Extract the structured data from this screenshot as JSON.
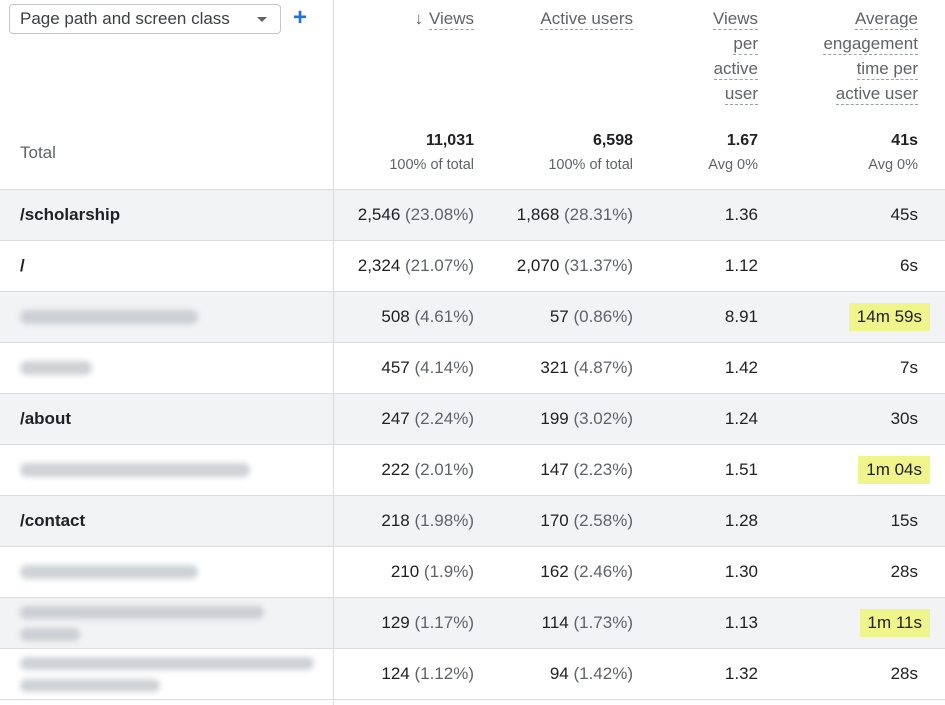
{
  "dimension_select": {
    "label": "Page path and screen class"
  },
  "columns": {
    "views": "Views",
    "active_users": "Active users",
    "views_per_active_user": [
      "Views",
      "per",
      "active",
      "user"
    ],
    "avg_engagement": [
      "Average",
      "engagement",
      "time per",
      "active user"
    ]
  },
  "total": {
    "label": "Total",
    "views": "11,031",
    "views_sub": "100% of total",
    "users": "6,598",
    "users_sub": "100% of total",
    "vpu": "1.67",
    "vpu_sub": "Avg 0%",
    "aet": "41s",
    "aet_sub": "Avg 0%"
  },
  "rows": [
    {
      "path": "/scholarship",
      "views": "2,546",
      "views_pct": "(23.08%)",
      "users": "1,868",
      "users_pct": "(28.31%)",
      "vpu": "1.36",
      "aet": "45s",
      "highlight": false,
      "blurred": false
    },
    {
      "path": "/",
      "views": "2,324",
      "views_pct": "(21.07%)",
      "users": "2,070",
      "users_pct": "(31.37%)",
      "vpu": "1.12",
      "aet": "6s",
      "highlight": false,
      "blurred": false
    },
    {
      "path": "",
      "views": "508",
      "views_pct": "(4.61%)",
      "users": "57",
      "users_pct": "(0.86%)",
      "vpu": "8.91",
      "aet": "14m 59s",
      "highlight": true,
      "blurred": true
    },
    {
      "path": "",
      "views": "457",
      "views_pct": "(4.14%)",
      "users": "321",
      "users_pct": "(4.87%)",
      "vpu": "1.42",
      "aet": "7s",
      "highlight": false,
      "blurred": true
    },
    {
      "path": "/about",
      "views": "247",
      "views_pct": "(2.24%)",
      "users": "199",
      "users_pct": "(3.02%)",
      "vpu": "1.24",
      "aet": "30s",
      "highlight": false,
      "blurred": false
    },
    {
      "path": "",
      "views": "222",
      "views_pct": "(2.01%)",
      "users": "147",
      "users_pct": "(2.23%)",
      "vpu": "1.51",
      "aet": "1m 04s",
      "highlight": true,
      "blurred": true
    },
    {
      "path": "/contact",
      "views": "218",
      "views_pct": "(1.98%)",
      "users": "170",
      "users_pct": "(2.58%)",
      "vpu": "1.28",
      "aet": "15s",
      "highlight": false,
      "blurred": false
    },
    {
      "path": "",
      "views": "210",
      "views_pct": "(1.9%)",
      "users": "162",
      "users_pct": "(2.46%)",
      "vpu": "1.30",
      "aet": "28s",
      "highlight": false,
      "blurred": true
    },
    {
      "path": "",
      "views": "129",
      "views_pct": "(1.17%)",
      "users": "114",
      "users_pct": "(1.73%)",
      "vpu": "1.13",
      "aet": "1m 11s",
      "highlight": true,
      "blurred": true
    },
    {
      "path": "",
      "views": "124",
      "views_pct": "(1.12%)",
      "users": "94",
      "users_pct": "(1.42%)",
      "vpu": "1.32",
      "aet": "28s",
      "highlight": false,
      "blurred": true
    }
  ],
  "colors": {
    "highlight": "#eff58a",
    "accent": "#1a73e8",
    "alt_row": "#f1f3f4"
  },
  "icons": {
    "add": "plus-icon",
    "sort": "arrow-down-icon",
    "dropdown": "caret-down-icon"
  }
}
